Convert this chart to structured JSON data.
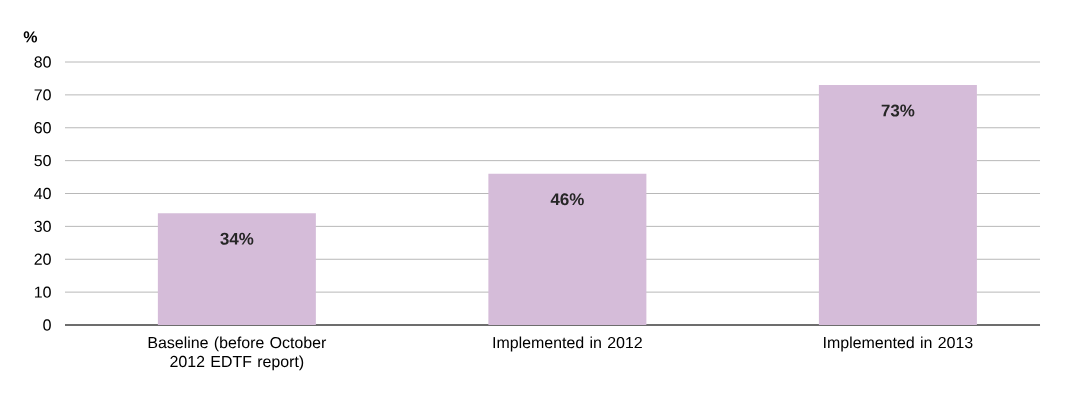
{
  "chart_data": {
    "type": "bar",
    "ylabel": "%",
    "categories": [
      "Baseline (before October 2012 EDTF report)",
      "Implemented in 2012",
      "Implemented in 2013"
    ],
    "values": [
      34,
      46,
      73
    ],
    "value_labels": [
      "34%",
      "46%",
      "73%"
    ],
    "color": "#d5bcd9",
    "ylim": [
      0,
      80
    ],
    "yticks": [
      0,
      10,
      20,
      30,
      40,
      50,
      60,
      70,
      80
    ],
    "grid": "y"
  }
}
